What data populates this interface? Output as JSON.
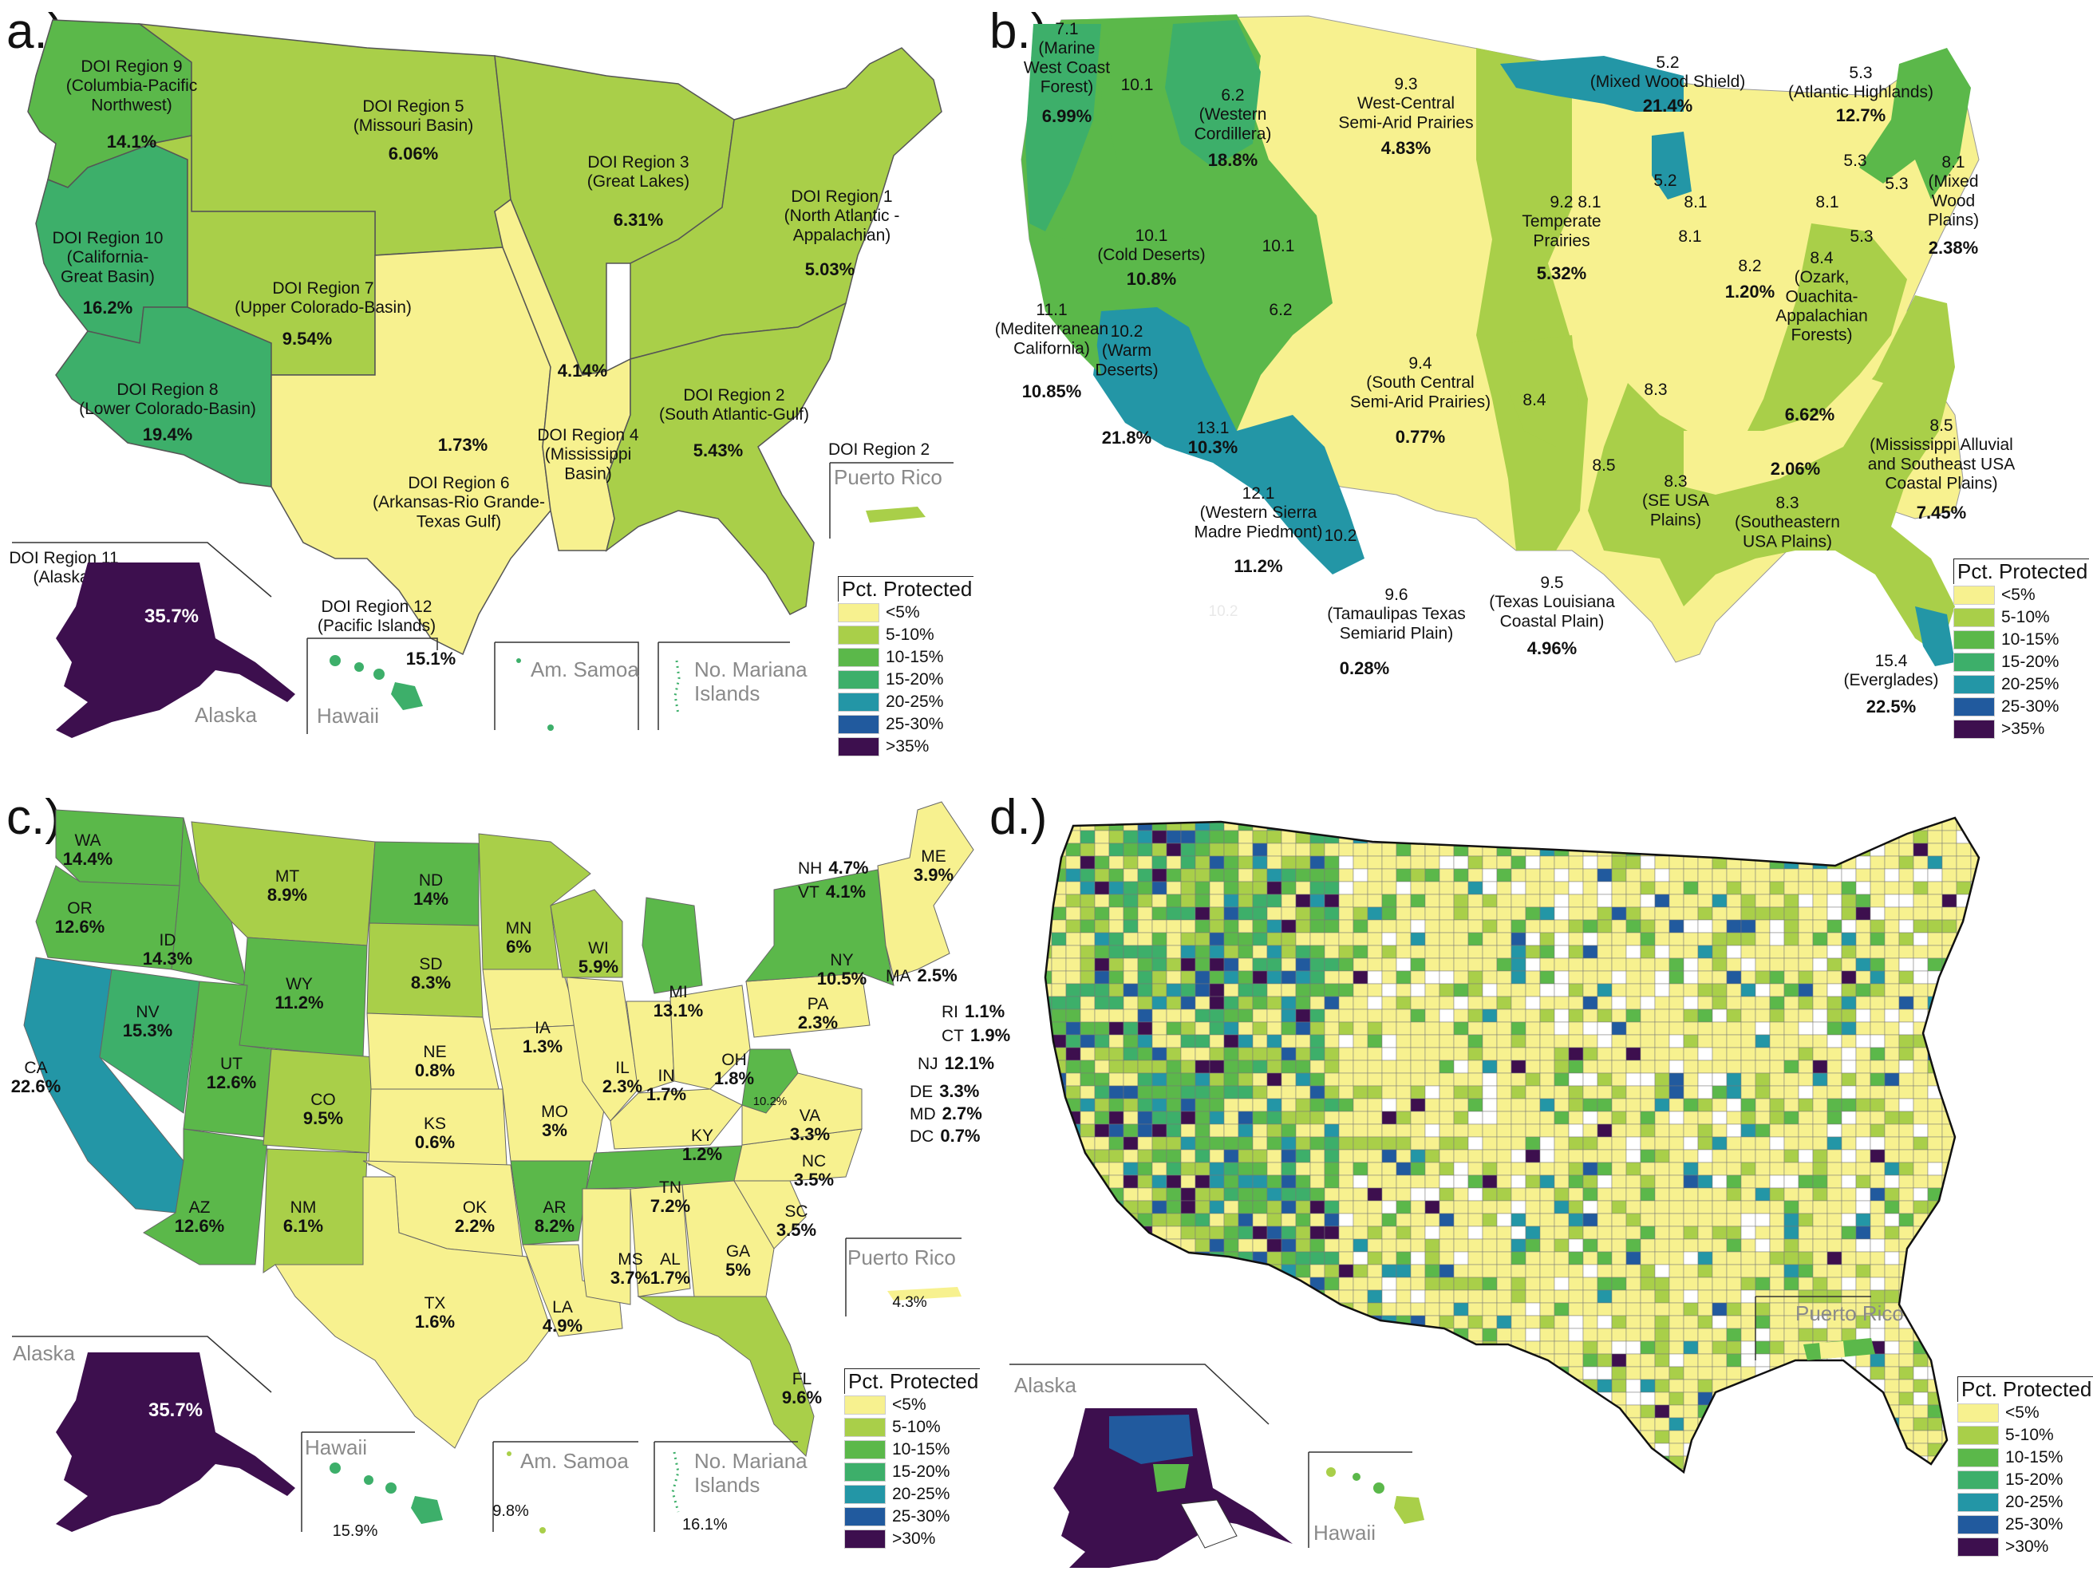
{
  "legend": {
    "title": "Pct. Protected",
    "classes_ab": [
      "<5%",
      "5-10%",
      "10-15%",
      "15-20%",
      "20-25%",
      "25-30%",
      ">35%"
    ],
    "classes_c": [
      "<5%",
      "5-10%",
      "10-15%",
      "15-20%",
      "20-25%",
      "25-30%",
      ">30%"
    ],
    "classes_d": [
      "<5%",
      "5-10%",
      "10-15%",
      "15-20%",
      "20-25%",
      "25-30%",
      ">30%"
    ],
    "colors": [
      "#f7f18f",
      "#a9cf49",
      "#5bb84a",
      "#3daf6a",
      "#2396a6",
      "#215a9e",
      "#3d0f4e"
    ]
  },
  "panel_a": {
    "label": "a.)",
    "regions": [
      {
        "name": "DOI Region 9\n(Columbia-Pacific\nNorthwest)",
        "value": "14.1%",
        "color": "#5bb84a"
      },
      {
        "name": "DOI Region 5\n(Missouri Basin)",
        "value": "6.06%",
        "color": "#a9cf49"
      },
      {
        "name": "DOI Region 3\n(Great Lakes)",
        "value": "6.31%",
        "color": "#a9cf49"
      },
      {
        "name": "DOI Region 1\n(North Atlantic -\nAppalachian)",
        "value": "5.03%",
        "color": "#a9cf49"
      },
      {
        "name": "DOI Region 10\n(California-\nGreat Basin)",
        "value": "16.2%",
        "color": "#3daf6a"
      },
      {
        "name": "DOI Region 7\n(Upper Colorado-Basin)",
        "value": "9.54%",
        "color": "#a9cf49"
      },
      {
        "name": "DOI Region 8\n(Lower Colorado-Basin)",
        "value": "19.4%",
        "color": "#3daf6a"
      },
      {
        "name": "DOI Region 6\n(Arkansas-Rio Grande-\nTexas Gulf)",
        "value": "1.73%",
        "color": "#f7f18f"
      },
      {
        "name": "DOI Region 4\n(Mississippi\nBasin)",
        "value": "4.14%",
        "color": "#f7f18f"
      },
      {
        "name": "DOI Region 2\n(South Atlantic-Gulf)",
        "value": "5.43%",
        "color": "#a9cf49"
      },
      {
        "name": "DOI Region 11\n(Alaska)",
        "value": "35.7%",
        "color": "#3d0f4e"
      },
      {
        "name": "DOI Region 12\n(Pacific Islands)",
        "value": "15.1%",
        "color": "#3daf6a"
      }
    ],
    "pr_region": "DOI Region 2",
    "insets": [
      "Puerto Rico",
      "Alaska",
      "Hawaii",
      "Am. Samoa",
      "No. Mariana\nIslands"
    ]
  },
  "panel_b": {
    "label": "b.)",
    "ecoregions": [
      {
        "name": "7.1\n(Marine\nWest Coast\nForest)",
        "value": "6.99%"
      },
      {
        "name": "10.1",
        "value": ""
      },
      {
        "name": "6.2\n(Western\nCordillera)",
        "value": "18.8%"
      },
      {
        "name": "9.3\nWest-Central\nSemi-Arid Prairies",
        "value": "4.83%"
      },
      {
        "name": "5.2\n(Mixed Wood Shield)",
        "value": "21.4%"
      },
      {
        "name": "5.3\n(Atlantic Highlands)",
        "value": "12.7%"
      },
      {
        "name": "10.1\n(Cold Deserts)",
        "value": "10.8%"
      },
      {
        "name": "9.2\nTemperate\nPrairies",
        "value": "5.32%"
      },
      {
        "name": "8.1\n(Mixed\nWood\nPlains)",
        "value": "2.38%"
      },
      {
        "name": "8.2",
        "value": "1.20%"
      },
      {
        "name": "8.4\n(Ozark,\nOuachita-\nAppalachian\nForests)",
        "value": "6.62%"
      },
      {
        "name": "11.1\n(Mediterranean\nCalifornia)",
        "value": "10.85%"
      },
      {
        "name": "10.2\n(Warm\nDeserts)",
        "value": "21.8%"
      },
      {
        "name": "13.1",
        "value": "10.3%"
      },
      {
        "name": "9.4\n(South Central\nSemi-Arid Prairies)",
        "value": "0.77%"
      },
      {
        "name": "8.3\n(Southeastern\nUSA Plains)",
        "value": "2.06%"
      },
      {
        "name": "8.5\n(Mississippi Alluvial\nand Southeast USA\nCoastal Plains)",
        "value": "7.45%"
      },
      {
        "name": "12.1\n(Western Sierra\nMadre Piedmont)",
        "value": "11.2%"
      },
      {
        "name": "8.3\n(SE USA\nPlains)",
        "value": ""
      },
      {
        "name": "9.6\n(Tamaulipas Texas\nSemiarid Plain)",
        "value": "0.28%"
      },
      {
        "name": "9.5\n(Texas Louisiana\nCoastal Plain)",
        "value": "4.96%"
      },
      {
        "name": "15.4\n(Everglades)",
        "value": "22.5%"
      }
    ],
    "minor_labels": [
      "5.3",
      "5.3",
      "5.3",
      "5.2",
      "8.1",
      "8.1",
      "8.1",
      "8.1",
      "10.1",
      "6.2",
      "8.4",
      "8.3",
      "8.5",
      "10.2",
      "10.2"
    ]
  },
  "panel_c": {
    "label": "c.)",
    "states": [
      {
        "abbr": "WA",
        "value": "14.4%"
      },
      {
        "abbr": "OR",
        "value": "12.6%"
      },
      {
        "abbr": "CA",
        "value": "22.6%"
      },
      {
        "abbr": "ID",
        "value": "14.3%"
      },
      {
        "abbr": "NV",
        "value": "15.3%"
      },
      {
        "abbr": "MT",
        "value": "8.9%"
      },
      {
        "abbr": "WY",
        "value": "11.2%"
      },
      {
        "abbr": "UT",
        "value": "12.6%"
      },
      {
        "abbr": "AZ",
        "value": "12.6%"
      },
      {
        "abbr": "CO",
        "value": "9.5%"
      },
      {
        "abbr": "NM",
        "value": "6.1%"
      },
      {
        "abbr": "ND",
        "value": "14%"
      },
      {
        "abbr": "SD",
        "value": "8.3%"
      },
      {
        "abbr": "NE",
        "value": "0.8%"
      },
      {
        "abbr": "KS",
        "value": "0.6%"
      },
      {
        "abbr": "OK",
        "value": "2.2%"
      },
      {
        "abbr": "TX",
        "value": "1.6%"
      },
      {
        "abbr": "MN",
        "value": "6%"
      },
      {
        "abbr": "IA",
        "value": "1.3%"
      },
      {
        "abbr": "MO",
        "value": "3%"
      },
      {
        "abbr": "AR",
        "value": "8.2%"
      },
      {
        "abbr": "LA",
        "value": "4.9%"
      },
      {
        "abbr": "WI",
        "value": "5.9%"
      },
      {
        "abbr": "IL",
        "value": "2.3%"
      },
      {
        "abbr": "MI",
        "value": "13.1%"
      },
      {
        "abbr": "IN",
        "value": "1.7%"
      },
      {
        "abbr": "OH",
        "value": "1.8%"
      },
      {
        "abbr": "KY",
        "value": "1.2%"
      },
      {
        "abbr": "TN",
        "value": "7.2%"
      },
      {
        "abbr": "MS",
        "value": "3.7%"
      },
      {
        "abbr": "AL",
        "value": "1.7%"
      },
      {
        "abbr": "GA",
        "value": "5%"
      },
      {
        "abbr": "FL",
        "value": "9.6%"
      },
      {
        "abbr": "SC",
        "value": "3.5%"
      },
      {
        "abbr": "NC",
        "value": "3.5%"
      },
      {
        "abbr": "VA",
        "value": "3.3%"
      },
      {
        "abbr": "PA",
        "value": "2.3%"
      },
      {
        "abbr": "NY",
        "value": "10.5%"
      },
      {
        "abbr": "ME",
        "value": "3.9%"
      },
      {
        "abbr": "NH",
        "value": "4.7%"
      },
      {
        "abbr": "VT",
        "value": "4.1%"
      },
      {
        "abbr": "MA",
        "value": "2.5%"
      },
      {
        "abbr": "RI",
        "value": "1.1%"
      },
      {
        "abbr": "CT",
        "value": "1.9%"
      },
      {
        "abbr": "NJ",
        "value": "12.1%"
      },
      {
        "abbr": "DE",
        "value": "3.3%"
      },
      {
        "abbr": "MD",
        "value": "2.7%"
      },
      {
        "abbr": "DC",
        "value": "0.7%"
      }
    ],
    "wv_value": "10.2%",
    "insets": [
      {
        "name": "Alaska",
        "value": "35.7%"
      },
      {
        "name": "Hawaii",
        "value": "15.9%"
      },
      {
        "name": "Am. Samoa",
        "value": "9.8%"
      },
      {
        "name": "No. Mariana\nIslands",
        "value": "16.1%"
      },
      {
        "name": "Puerto Rico",
        "value": "4.3%"
      }
    ]
  },
  "panel_d": {
    "label": "d.)",
    "insets": [
      "Puerto Rico",
      "Alaska",
      "Hawaii"
    ]
  }
}
